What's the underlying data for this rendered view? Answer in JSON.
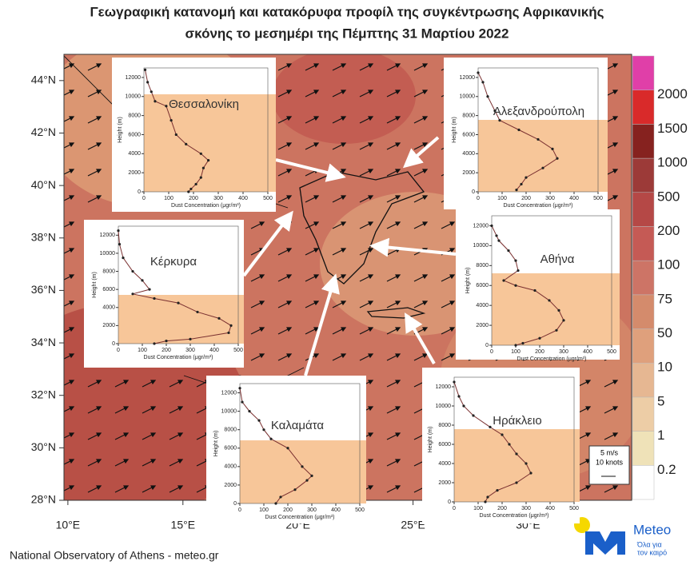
{
  "title": [
    "Γεωγραφική κατανομή και κατακόρυφα προφίλ της συγκέντρωσης Αφρικανικής",
    "σκόνης το μεσημέρι της Πέμπτης 31 Μαρτίου 2022"
  ],
  "map": {
    "xlim": [
      9.83,
      34.5
    ],
    "ylim": [
      28,
      45
    ],
    "yticks": [
      {
        "value": 28,
        "label": "28°N"
      },
      {
        "value": 30,
        "label": "30°N"
      },
      {
        "value": 32,
        "label": "32°N"
      },
      {
        "value": 34,
        "label": "34°N"
      },
      {
        "value": 36,
        "label": "36°N"
      },
      {
        "value": 38,
        "label": "38°N"
      },
      {
        "value": 40,
        "label": "40°N"
      },
      {
        "value": 42,
        "label": "42°N"
      },
      {
        "value": 44,
        "label": "44°N"
      }
    ],
    "xticks": [
      {
        "value": 10,
        "label": "10°E"
      },
      {
        "value": 15,
        "label": "15°E"
      },
      {
        "value": 20,
        "label": "20°E"
      },
      {
        "value": 25,
        "label": "25°E"
      },
      {
        "value": 30,
        "label": "30°E"
      }
    ]
  },
  "colorbar": {
    "levels": [
      0.2,
      1,
      5,
      10,
      50,
      75,
      100,
      200,
      500,
      1000,
      1500,
      2000
    ],
    "colors": [
      "#ffffff",
      "#efe2b8",
      "#edcda6",
      "#e6b792",
      "#dfa07c",
      "#d48b6c",
      "#cd7466",
      "#c55a55",
      "#b54846",
      "#9c3a38",
      "#86221f",
      "#d92a2a",
      "#e03fa8"
    ]
  },
  "wind_legend": [
    "5 m/s",
    "10 knots"
  ],
  "inset_axes": {
    "ylabel": "Height (m)",
    "xlabel": "Dust Concentration (μgr/m³)",
    "ylim": [
      0,
      13000
    ],
    "xlim": [
      0,
      500
    ],
    "yticks": [
      0,
      2000,
      4000,
      6000,
      8000,
      10000,
      12000
    ],
    "xticks": [
      0,
      100,
      200,
      300,
      400,
      500
    ]
  },
  "insets": [
    {
      "city": "Θεσσαλονίκη",
      "height": [
        12800,
        11500,
        10500,
        9500,
        9000,
        7500,
        6000,
        5000,
        4000,
        3300,
        2500,
        1500,
        800,
        300,
        0
      ],
      "concentration": [
        5,
        15,
        30,
        45,
        90,
        110,
        130,
        170,
        230,
        260,
        240,
        230,
        210,
        190,
        180
      ]
    },
    {
      "city": "Αλεξανδρούπολη",
      "height": [
        12500,
        11500,
        10000,
        8500,
        7500,
        6500,
        5500,
        4500,
        3500,
        2500,
        1500,
        800,
        200
      ],
      "concentration": [
        0,
        20,
        40,
        70,
        90,
        170,
        250,
        310,
        330,
        270,
        200,
        180,
        160
      ]
    },
    {
      "city": "Κέρκυρα",
      "height": [
        12500,
        11000,
        9500,
        8000,
        7000,
        6000,
        5500,
        5000,
        4500,
        3500,
        2800,
        2000,
        1200,
        500,
        300,
        0
      ],
      "concentration": [
        0,
        5,
        20,
        60,
        100,
        130,
        60,
        150,
        250,
        330,
        420,
        470,
        460,
        300,
        200,
        150
      ]
    },
    {
      "city": "Αθήνα",
      "height": [
        12000,
        11000,
        10500,
        9500,
        8500,
        7500,
        6500,
        6000,
        5500,
        4500,
        3500,
        2500,
        1500,
        700,
        200,
        0
      ],
      "concentration": [
        0,
        20,
        30,
        70,
        100,
        110,
        50,
        100,
        180,
        240,
        280,
        300,
        270,
        200,
        130,
        100
      ]
    },
    {
      "city": "Καλαμάτα",
      "height": [
        12500,
        11000,
        10000,
        9000,
        8000,
        7000,
        6000,
        4000,
        3000,
        2500,
        1500,
        700,
        0
      ],
      "concentration": [
        0,
        10,
        40,
        80,
        100,
        130,
        200,
        260,
        300,
        280,
        230,
        170,
        150
      ]
    },
    {
      "city": "Ηράκλειο",
      "height": [
        12500,
        11000,
        10000,
        9000,
        7800,
        7000,
        6000,
        5000,
        4000,
        3000,
        2000,
        1200,
        500,
        0
      ],
      "concentration": [
        0,
        20,
        40,
        80,
        150,
        200,
        230,
        260,
        300,
        320,
        260,
        180,
        140,
        130
      ]
    }
  ],
  "footer": "National Observatory of Athens - meteo.gr",
  "logo": {
    "name": "Meteo",
    "tagline": [
      "Όλα για",
      "τον καιρό"
    ]
  }
}
